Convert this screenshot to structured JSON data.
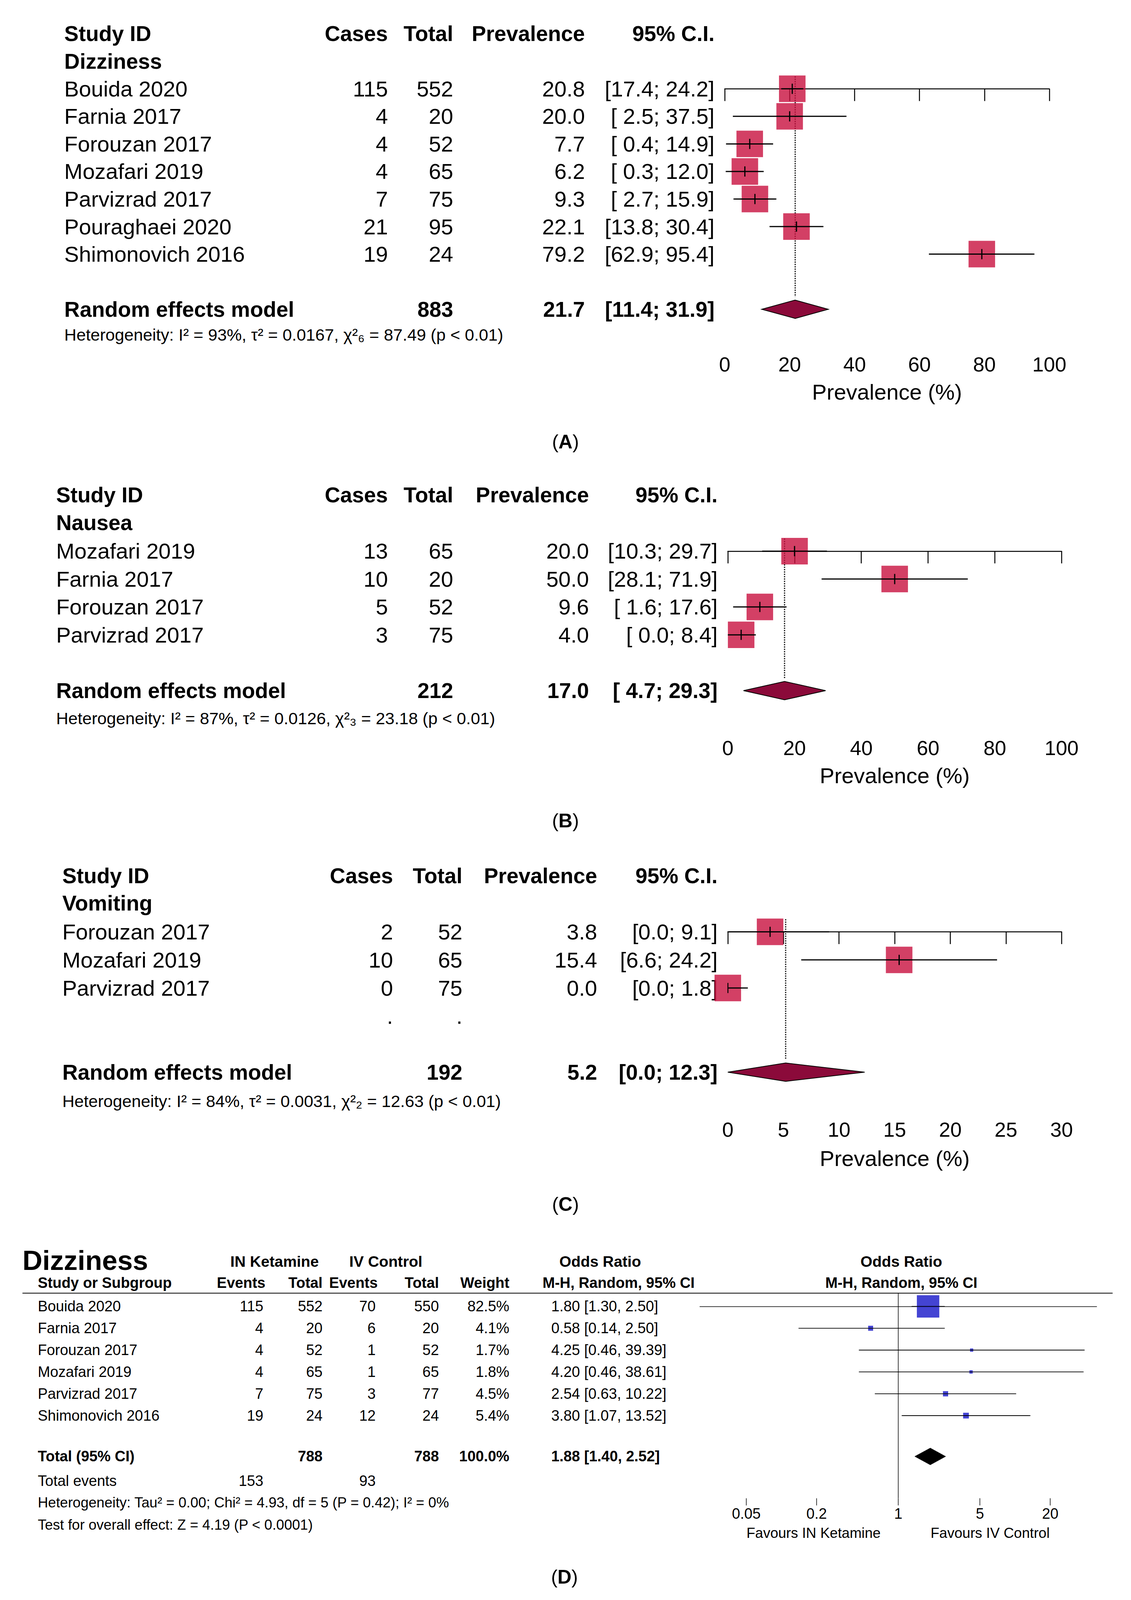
{
  "chart_data": [
    {
      "type": "forest",
      "panel_label": "(A)",
      "subgroup": "Dizziness",
      "columns": [
        "Study ID",
        "Cases",
        "Total",
        "Prevalence",
        "95% C.I."
      ],
      "studies": [
        {
          "study": "Bouida 2020",
          "cases": 115,
          "total": 552,
          "value": 20.8,
          "value_label": "20.8",
          "ci": [
            17.4,
            24.2
          ],
          "ci_label": "[17.4; 24.2]"
        },
        {
          "study": "Farnia 2017",
          "cases": 4,
          "total": 20,
          "value": 20.0,
          "value_label": "20.0",
          "ci": [
            2.5,
            37.5
          ],
          "ci_label": "[ 2.5; 37.5]"
        },
        {
          "study": "Forouzan 2017",
          "cases": 4,
          "total": 52,
          "value": 7.7,
          "value_label": "7.7",
          "ci": [
            0.4,
            14.9
          ],
          "ci_label": "[ 0.4; 14.9]"
        },
        {
          "study": "Mozafari 2019",
          "cases": 4,
          "total": 65,
          "value": 6.2,
          "value_label": "6.2",
          "ci": [
            0.3,
            12.0
          ],
          "ci_label": "[ 0.3; 12.0]"
        },
        {
          "study": "Parvizrad 2017",
          "cases": 7,
          "total": 75,
          "value": 9.3,
          "value_label": "9.3",
          "ci": [
            2.7,
            15.9
          ],
          "ci_label": "[ 2.7; 15.9]"
        },
        {
          "study": "Pouraghaei 2020",
          "cases": 21,
          "total": 95,
          "value": 22.1,
          "value_label": "22.1",
          "ci": [
            13.8,
            30.4
          ],
          "ci_label": "[13.8; 30.4]"
        },
        {
          "study": "Shimonovich 2016",
          "cases": 19,
          "total": 24,
          "value": 79.2,
          "value_label": "79.2",
          "ci": [
            62.9,
            95.4
          ],
          "ci_label": "[62.9; 95.4]"
        }
      ],
      "pooled": {
        "label": "Random effects model",
        "total": 883,
        "value": 21.7,
        "value_label": "21.7",
        "ci": [
          11.4,
          31.9
        ],
        "ci_label": "[11.4; 31.9]"
      },
      "heterogeneity": "Heterogeneity: I² = 93%, τ² = 0.0167, χ²₆ = 87.49 (p < 0.01)",
      "x_label": "Prevalence (%)",
      "xlim": [
        0,
        100
      ],
      "xticks": [
        0,
        20,
        40,
        60,
        80,
        100
      ],
      "color": "#c8103f"
    },
    {
      "type": "forest",
      "panel_label": "(B)",
      "subgroup": "Nausea",
      "columns": [
        "Study ID",
        "Cases",
        "Total",
        "Prevalence",
        "95% C.I."
      ],
      "studies": [
        {
          "study": "Mozafari 2019",
          "cases": 13,
          "total": 65,
          "value": 20.0,
          "value_label": "20.0",
          "ci": [
            10.3,
            29.7
          ],
          "ci_label": "[10.3; 29.7]"
        },
        {
          "study": "Farnia 2017",
          "cases": 10,
          "total": 20,
          "value": 50.0,
          "value_label": "50.0",
          "ci": [
            28.1,
            71.9
          ],
          "ci_label": "[28.1; 71.9]"
        },
        {
          "study": "Forouzan 2017",
          "cases": 5,
          "total": 52,
          "value": 9.6,
          "value_label": "9.6",
          "ci": [
            1.6,
            17.6
          ],
          "ci_label": "[ 1.6; 17.6]"
        },
        {
          "study": "Parvizrad 2017",
          "cases": 3,
          "total": 75,
          "value": 4.0,
          "value_label": "4.0",
          "ci": [
            0.0,
            8.4
          ],
          "ci_label": "[ 0.0; 8.4]"
        }
      ],
      "pooled": {
        "label": "Random effects model",
        "total": 212,
        "value": 17.0,
        "value_label": "17.0",
        "ci": [
          4.7,
          29.3
        ],
        "ci_label": "[ 4.7; 29.3]"
      },
      "heterogeneity": "Heterogeneity: I² = 87%, τ² = 0.0126, χ²₃ = 23.18 (p < 0.01)",
      "x_label": "Prevalence (%)",
      "xlim": [
        0,
        100
      ],
      "xticks": [
        0,
        20,
        40,
        60,
        80,
        100
      ],
      "color": "#c8103f"
    },
    {
      "type": "forest",
      "panel_label": "(C)",
      "subgroup": "Vomiting",
      "columns": [
        "Study ID",
        "Cases",
        "Total",
        "Prevalence",
        "95% C.I."
      ],
      "studies": [
        {
          "study": "Forouzan 2017",
          "cases": 2,
          "total": 52,
          "value": 3.8,
          "value_label": "3.8",
          "ci": [
            0.0,
            9.1
          ],
          "ci_label": "[0.0; 9.1]"
        },
        {
          "study": "Mozafari 2019",
          "cases": 10,
          "total": 65,
          "value": 15.4,
          "value_label": "15.4",
          "ci": [
            6.6,
            24.2
          ],
          "ci_label": "[6.6; 24.2]"
        },
        {
          "study": "Parvizrad 2017",
          "cases": 0,
          "total": 75,
          "value": 0.0,
          "value_label": "0.0",
          "ci": [
            0.0,
            1.8
          ],
          "ci_label": "[0.0; 1.8]"
        }
      ],
      "trailing_marks": [
        ".",
        "."
      ],
      "pooled": {
        "label": "Random effects model",
        "total": 192,
        "value": 5.2,
        "value_label": "5.2",
        "ci": [
          0.0,
          12.3
        ],
        "ci_label": "[0.0; 12.3]"
      },
      "heterogeneity": "Heterogeneity: I² = 84%, τ² = 0.0031, χ²₂ = 12.63 (p < 0.01)",
      "x_label": "Prevalence (%)",
      "xlim": [
        0,
        30
      ],
      "xticks": [
        0,
        5,
        10,
        15,
        20,
        25,
        30
      ],
      "color": "#c8103f"
    },
    {
      "type": "forest_or",
      "panel_label": "(D)",
      "title": "Dizziness",
      "group_headers": [
        "IN Ketamine",
        "IV Control",
        "Odds Ratio",
        "Odds Ratio"
      ],
      "columns": [
        "Study or Subgroup",
        "Events",
        "Total",
        "Events",
        "Total",
        "Weight",
        "M-H, Random, 95% CI",
        "M-H, Random, 95% CI"
      ],
      "studies": [
        {
          "study": "Bouida 2020",
          "events_1": 115,
          "total_1": 552,
          "events_2": 70,
          "total_2": 550,
          "weight": 82.5,
          "weight_label": "82.5%",
          "value": 1.8,
          "ci": [
            1.3,
            2.5
          ],
          "value_label": "1.80 [1.30, 2.50]"
        },
        {
          "study": "Farnia 2017",
          "events_1": 4,
          "total_1": 20,
          "events_2": 6,
          "total_2": 20,
          "weight": 4.1,
          "weight_label": "4.1%",
          "value": 0.58,
          "ci": [
            0.14,
            2.5
          ],
          "value_label": "0.58 [0.14, 2.50]"
        },
        {
          "study": "Forouzan 2017",
          "events_1": 4,
          "total_1": 52,
          "events_2": 1,
          "total_2": 52,
          "weight": 1.7,
          "weight_label": "1.7%",
          "value": 4.25,
          "ci": [
            0.46,
            39.39
          ],
          "value_label": "4.25 [0.46, 39.39]"
        },
        {
          "study": "Mozafari 2019",
          "events_1": 4,
          "total_1": 65,
          "events_2": 1,
          "total_2": 65,
          "weight": 1.8,
          "weight_label": "1.8%",
          "value": 4.2,
          "ci": [
            0.46,
            38.61
          ],
          "value_label": "4.20 [0.46, 38.61]"
        },
        {
          "study": "Parvizrad 2017",
          "events_1": 7,
          "total_1": 75,
          "events_2": 3,
          "total_2": 77,
          "weight": 4.5,
          "weight_label": "4.5%",
          "value": 2.54,
          "ci": [
            0.63,
            10.22
          ],
          "value_label": "2.54 [0.63, 10.22]"
        },
        {
          "study": "Shimonovich 2016",
          "events_1": 19,
          "total_1": 24,
          "events_2": 12,
          "total_2": 24,
          "weight": 5.4,
          "weight_label": "5.4%",
          "value": 3.8,
          "ci": [
            1.07,
            13.52
          ],
          "value_label": "3.80 [1.07, 13.52]"
        }
      ],
      "total": {
        "label": "Total (95% CI)",
        "total_1": 788,
        "total_2": 788,
        "weight_label": "100.0%",
        "value": 1.88,
        "ci": [
          1.4,
          2.52
        ],
        "value_label": "1.88 [1.40, 2.52]"
      },
      "total_events": {
        "label": "Total events",
        "events_1": 153,
        "events_2": 93
      },
      "heterogeneity": "Heterogeneity: Tau² = 0.00; Chi² = 4.93, df = 5 (P = 0.42); I² = 0%",
      "overall_effect": "Test for overall effect: Z = 4.19 (P < 0.0001)",
      "favours": [
        "Favours IN Ketamine",
        "Favours IV Control"
      ],
      "log": "x",
      "xlim": [
        0.02,
        50
      ],
      "xticks": [
        0.05,
        0.2,
        1,
        5,
        20
      ],
      "reference_line": 1,
      "color": "#1515c8"
    }
  ]
}
